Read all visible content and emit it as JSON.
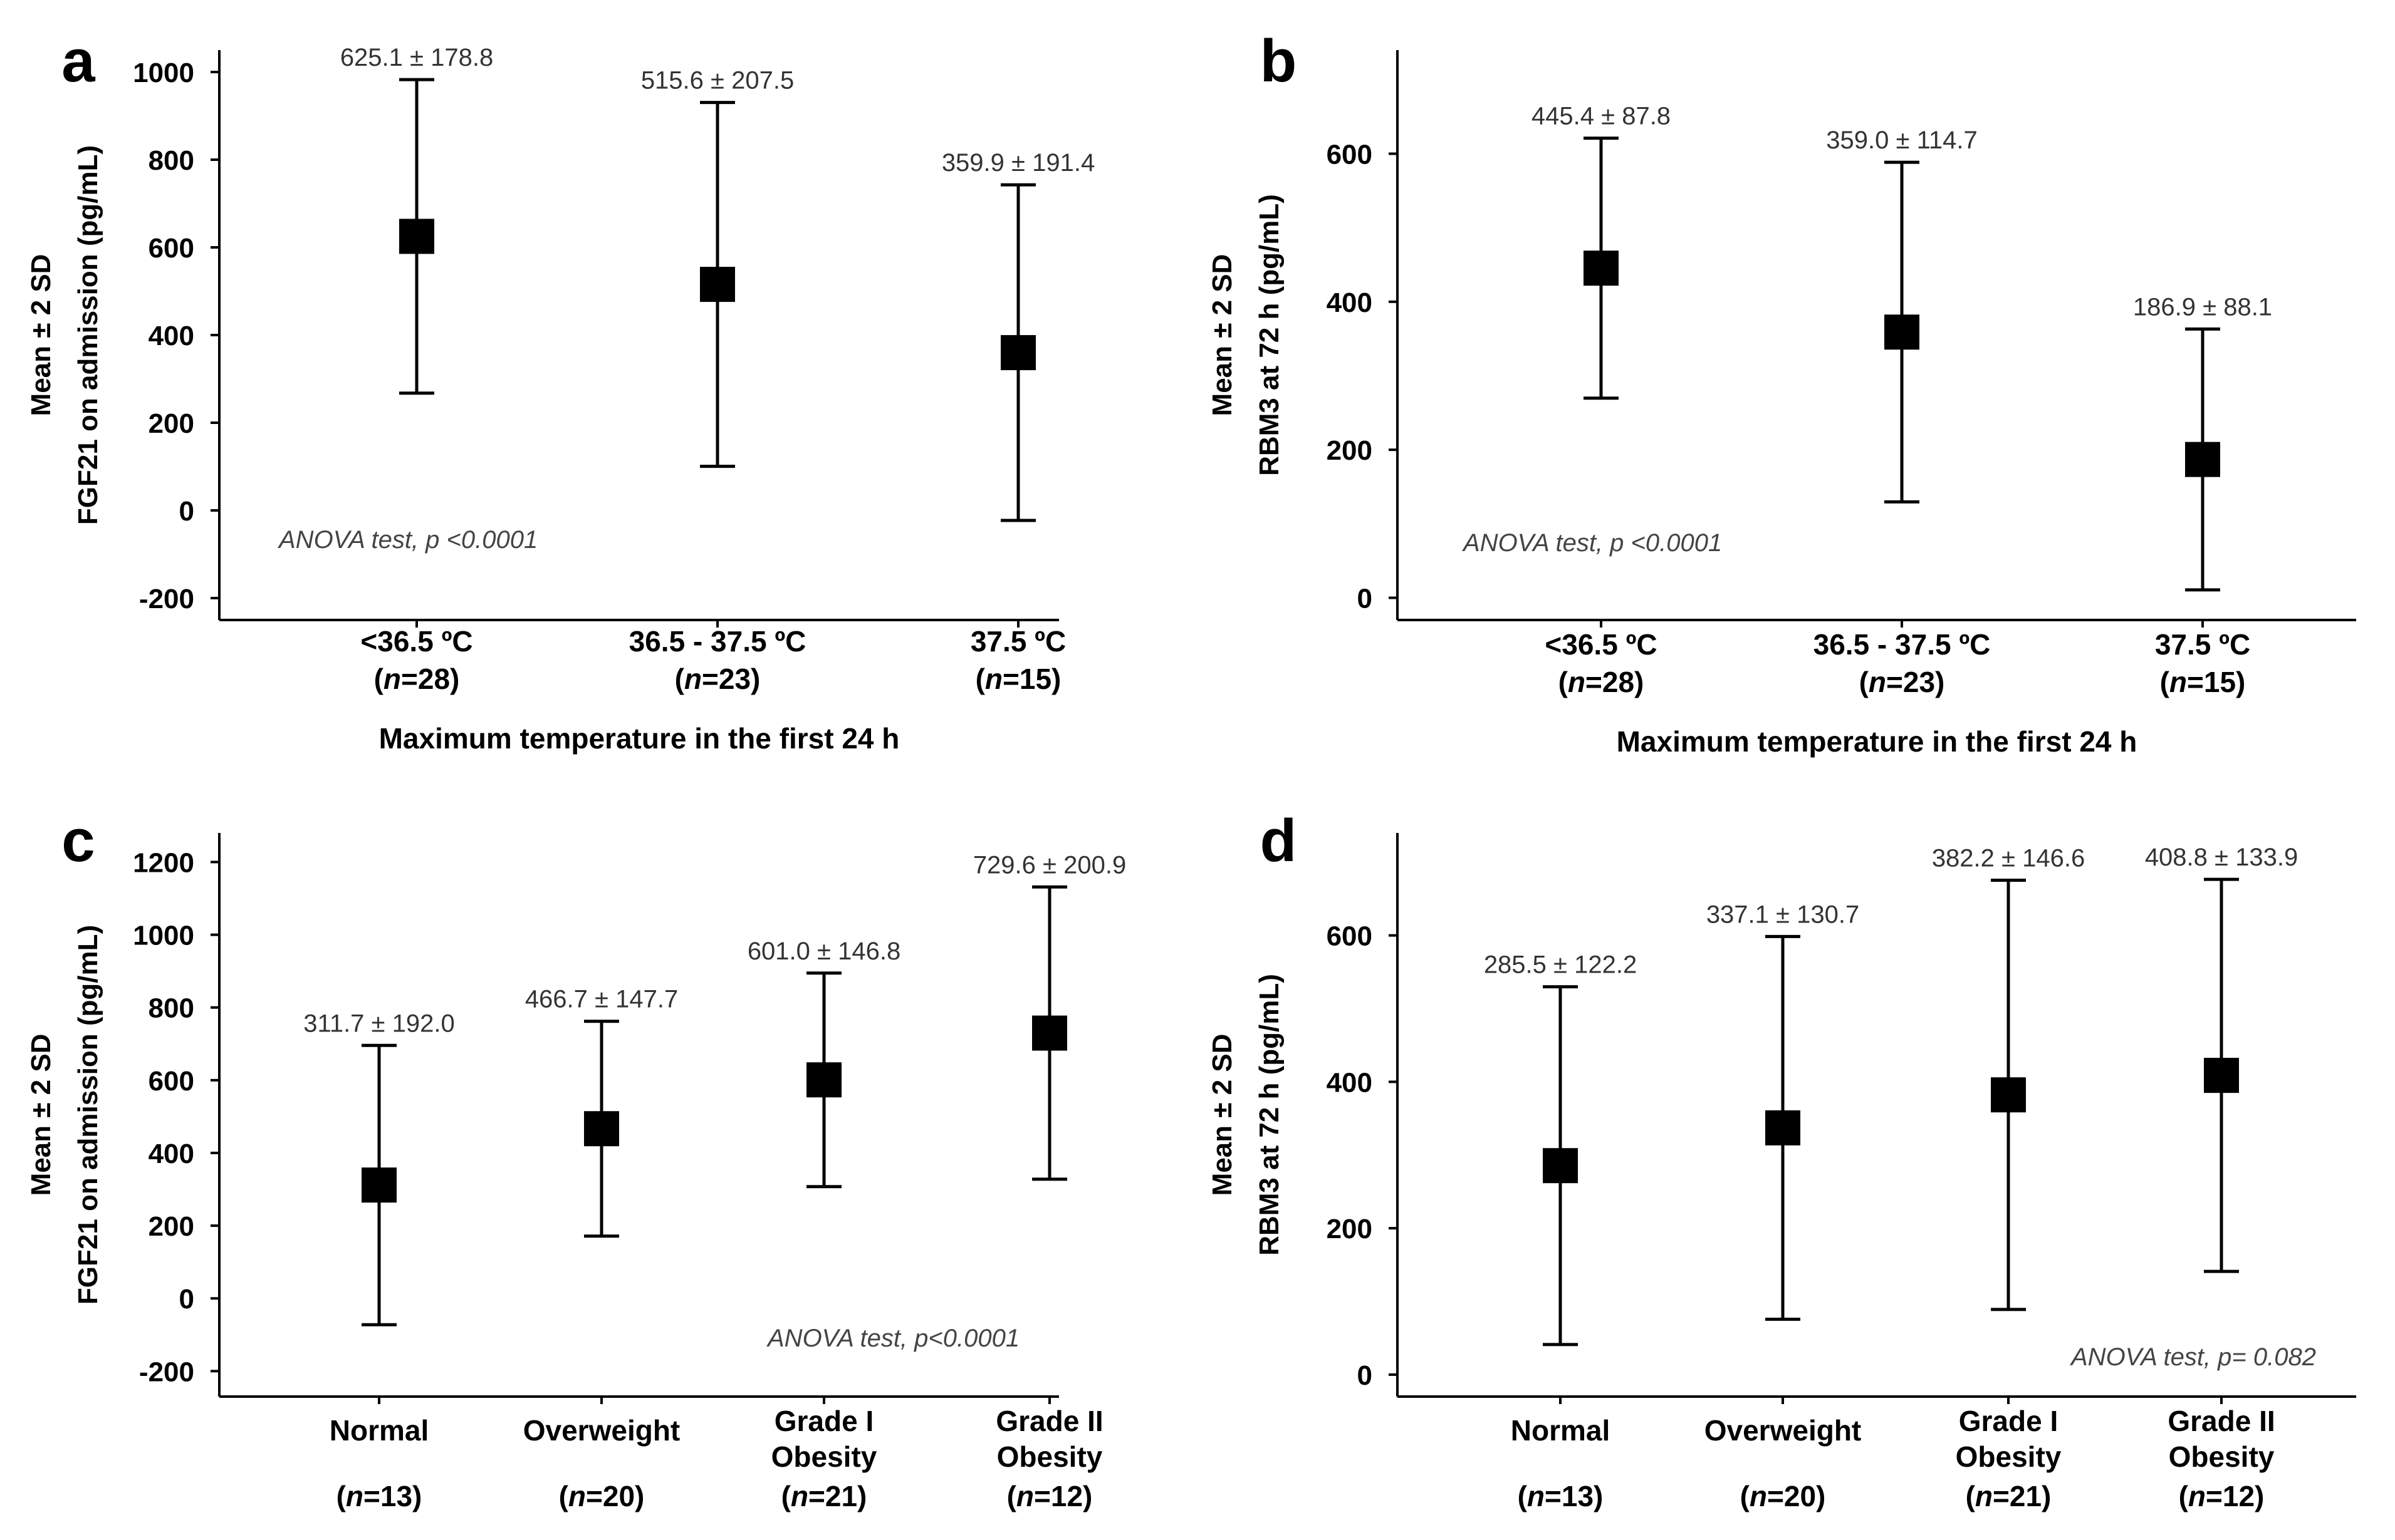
{
  "chart_data": [
    {
      "panel": "a",
      "type": "errorbar",
      "ylabel": [
        "Mean ± 2 SD",
        "FGF21 on admission (pg/mL)"
      ],
      "xlabel": "Maximum temperature in the first 24 h",
      "ylim": [
        -250,
        1050
      ],
      "yticks": [
        -200,
        0,
        200,
        400,
        600,
        800,
        1000
      ],
      "categories": [
        {
          "line1": "<36.5 ºC",
          "n": "28"
        },
        {
          "line1": "36.5 - 37.5 ºC",
          "n": "23"
        },
        {
          "line1": "37.5 ºC",
          "n": "15"
        }
      ],
      "means": [
        625.1,
        515.6,
        359.9
      ],
      "sd": [
        178.8,
        207.5,
        191.4
      ],
      "labels": [
        "625.1 ± 178.8",
        "515.6 ± 207.5",
        "359.9 ± 191.4"
      ],
      "anova": "ANOVA test, p <0.0001"
    },
    {
      "panel": "b",
      "type": "errorbar",
      "ylabel": [
        "Mean ± 2 SD",
        "RBM3 at 72 h (pg/mL)"
      ],
      "xlabel": "Maximum temperature in the first 24 h",
      "ylim": [
        -30,
        740
      ],
      "yticks": [
        0,
        200,
        400,
        600
      ],
      "categories": [
        {
          "line1": "<36.5 ºC",
          "n": "28"
        },
        {
          "line1": "36.5 - 37.5 ºC",
          "n": "23"
        },
        {
          "line1": "37.5 ºC",
          "n": "15"
        }
      ],
      "means": [
        445.4,
        359.0,
        186.9
      ],
      "sd": [
        87.8,
        114.7,
        88.1
      ],
      "labels": [
        "445.4 ± 87.8",
        "359.0 ± 114.7",
        "186.9 ± 88.1"
      ],
      "anova": "ANOVA test, p <0.0001"
    },
    {
      "panel": "c",
      "type": "errorbar",
      "ylabel": [
        "Mean ± 2 SD",
        "FGF21 on admission (pg/mL)"
      ],
      "xlabel": "",
      "ylim": [
        -270,
        1280
      ],
      "yticks": [
        -200,
        0,
        200,
        400,
        600,
        800,
        1000,
        1200
      ],
      "categories": [
        {
          "line1": "Normal",
          "line2": "",
          "n": "13"
        },
        {
          "line1": "Overweight",
          "line2": "",
          "n": "20"
        },
        {
          "line1": "Grade I",
          "line2": "Obesity",
          "n": "21"
        },
        {
          "line1": "Grade II",
          "line2": "Obesity",
          "n": "12"
        }
      ],
      "means": [
        311.7,
        466.7,
        601.0,
        729.6
      ],
      "sd": [
        192.0,
        147.7,
        146.8,
        200.9
      ],
      "labels": [
        "311.7 ± 192.0",
        "466.7 ± 147.7",
        "601.0 ± 146.8",
        "729.6 ± 200.9"
      ],
      "anova": "ANOVA test, p<0.0001"
    },
    {
      "panel": "d",
      "type": "errorbar",
      "ylabel": [
        "Mean ± 2 SD",
        "RBM3 at 72 h (pg/mL)"
      ],
      "xlabel": "",
      "ylim": [
        -30,
        740
      ],
      "yticks": [
        0,
        200,
        400,
        600
      ],
      "categories": [
        {
          "line1": "Normal",
          "line2": "",
          "n": "13"
        },
        {
          "line1": "Overweight",
          "line2": "",
          "n": "20"
        },
        {
          "line1": "Grade I",
          "line2": "Obesity",
          "n": "21"
        },
        {
          "line1": "Grade II",
          "line2": "Obesity",
          "n": "12"
        }
      ],
      "means": [
        285.5,
        337.1,
        382.2,
        408.8
      ],
      "sd": [
        122.2,
        130.7,
        146.6,
        133.9
      ],
      "labels": [
        "285.5 ± 122.2",
        "337.1 ± 130.7",
        "382.2 ± 146.6",
        "408.8 ± 133.9"
      ],
      "anova": "ANOVA test, p= 0.082"
    }
  ],
  "n_prefix": "n",
  "colors": {
    "marker": "#000000",
    "axis": "#000000",
    "annotation": "#333333"
  }
}
